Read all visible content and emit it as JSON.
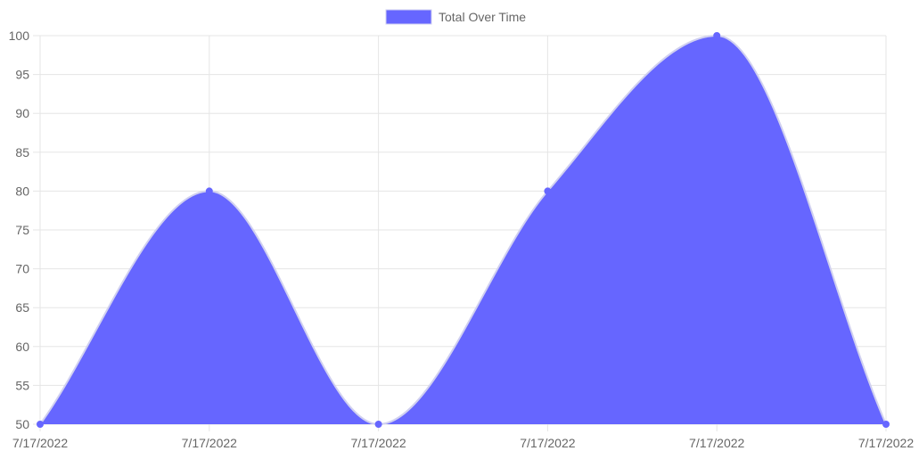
{
  "chart_data": {
    "type": "area",
    "categories": [
      "7/17/2022",
      "7/17/2022",
      "7/17/2022",
      "7/17/2022",
      "7/17/2022",
      "7/17/2022"
    ],
    "series": [
      {
        "name": "Total Over Time",
        "values": [
          50,
          80,
          50,
          80,
          100,
          50
        ],
        "fill_color": "#6666ff",
        "line_color": "#d0d0f0",
        "point_color": "#6666ff"
      }
    ],
    "title": "",
    "xlabel": "",
    "ylabel": "",
    "ylim": [
      50,
      100
    ],
    "y_ticks": [
      50,
      55,
      60,
      65,
      70,
      75,
      80,
      85,
      90,
      95,
      100
    ],
    "grid": true,
    "grid_color": "#e5e5e5",
    "legend_position": "top-center"
  }
}
